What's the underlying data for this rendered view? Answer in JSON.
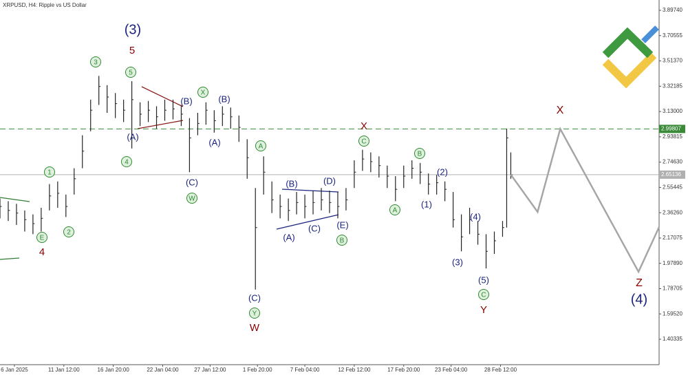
{
  "chart_data": {
    "type": "ohlc",
    "title": "XRPUSD, H4:  Ripple vs US Dollar",
    "color": "#222222",
    "x": [
      0,
      4,
      8,
      12,
      16,
      20,
      24,
      28,
      32,
      36,
      40,
      44,
      48,
      52,
      56,
      60,
      64,
      68,
      72,
      76,
      80,
      84,
      88,
      92,
      96,
      100,
      104,
      108,
      112,
      116,
      120,
      124,
      128,
      132,
      136,
      140,
      144,
      148,
      152,
      156,
      160,
      164,
      168,
      172,
      176,
      180,
      184,
      188,
      192,
      196,
      200,
      204,
      208,
      212,
      216,
      220,
      224,
      228,
      232,
      236,
      240,
      244,
      246,
      248
    ],
    "high": [
      2.47,
      2.45,
      2.43,
      2.38,
      2.35,
      2.4,
      2.58,
      2.6,
      2.5,
      2.7,
      2.95,
      3.22,
      3.4,
      3.33,
      3.27,
      3.22,
      3.36,
      3.2,
      3.21,
      3.17,
      3.22,
      3.22,
      3.18,
      3.08,
      3.12,
      3.2,
      3.14,
      3.17,
      3.16,
      3.1,
      2.92,
      2.55,
      2.79,
      2.6,
      2.5,
      2.47,
      2.52,
      2.5,
      2.53,
      2.55,
      2.53,
      2.52,
      2.55,
      2.76,
      2.84,
      2.82,
      2.79,
      2.72,
      2.64,
      2.72,
      2.76,
      2.74,
      2.66,
      2.65,
      2.6,
      2.52,
      2.35,
      2.4,
      2.3,
      2.2,
      2.22,
      2.3,
      3.0,
      2.82
    ],
    "low": [
      2.32,
      2.3,
      2.27,
      2.22,
      2.2,
      2.22,
      2.38,
      2.4,
      2.33,
      2.5,
      2.7,
      2.98,
      3.18,
      3.12,
      3.08,
      3.05,
      2.85,
      3.02,
      3.05,
      3.0,
      3.06,
      3.07,
      3.02,
      2.67,
      2.95,
      3.03,
      2.97,
      3.02,
      3.0,
      2.9,
      2.62,
      1.78,
      2.5,
      2.36,
      2.32,
      2.3,
      2.35,
      2.32,
      2.35,
      2.38,
      2.36,
      2.32,
      2.38,
      2.55,
      2.68,
      2.67,
      2.63,
      2.55,
      2.45,
      2.55,
      2.62,
      2.58,
      2.5,
      2.5,
      2.45,
      2.25,
      2.07,
      2.2,
      2.12,
      1.94,
      2.05,
      2.18,
      2.25,
      2.62
    ],
    "close": [
      2.41,
      2.38,
      2.36,
      2.31,
      2.28,
      2.32,
      2.49,
      2.51,
      2.41,
      2.62,
      2.83,
      3.14,
      3.32,
      3.24,
      3.19,
      3.14,
      3.22,
      3.11,
      3.14,
      3.09,
      3.14,
      3.15,
      3.11,
      2.93,
      3.04,
      3.14,
      3.06,
      3.11,
      3.09,
      3.01,
      2.78,
      2.25,
      2.67,
      2.46,
      2.41,
      2.38,
      2.44,
      2.41,
      2.44,
      2.46,
      2.44,
      2.41,
      2.46,
      2.67,
      2.77,
      2.75,
      2.72,
      2.64,
      2.54,
      2.64,
      2.7,
      2.67,
      2.58,
      2.59,
      2.54,
      2.31,
      2.18,
      2.31,
      2.2,
      2.07,
      2.15,
      2.25,
      2.93,
      2.65
    ],
    "xlim": [
      0,
      320
    ],
    "ylim": [
      1.2103,
      3.9757
    ],
    "xticks": [
      {
        "value": 7,
        "label": "6 Jan 2025"
      },
      {
        "value": 31,
        "label": "11 Jan 12:00"
      },
      {
        "value": 55,
        "label": "16 Jan 20:00"
      },
      {
        "value": 79,
        "label": "22 Jan 04:00"
      },
      {
        "value": 102,
        "label": "27 Jan 12:00"
      },
      {
        "value": 125,
        "label": "1 Feb 20:00"
      },
      {
        "value": 148,
        "label": "7 Feb 04:00"
      },
      {
        "value": 172,
        "label": "12 Feb 12:00"
      },
      {
        "value": 196,
        "label": "17 Feb 20:00"
      },
      {
        "value": 219,
        "label": "23 Feb 04:00"
      },
      {
        "value": 243,
        "label": "28 Feb 12:00"
      }
    ],
    "yticks": [
      {
        "value": 3.8974,
        "label": "3.89740"
      },
      {
        "value": 3.70555,
        "label": "3.70555"
      },
      {
        "value": 3.5137,
        "label": "3.51370"
      },
      {
        "value": 3.32185,
        "label": "3.32185"
      },
      {
        "value": 3.13,
        "label": "3.13000"
      },
      {
        "value": 2.93815,
        "label": "2.93815"
      },
      {
        "value": 2.7463,
        "label": "2.74630"
      },
      {
        "value": 2.55445,
        "label": "2.55445"
      },
      {
        "value": 2.3626,
        "label": "2.36260"
      },
      {
        "value": 2.17075,
        "label": "2.17075"
      },
      {
        "value": 1.9789,
        "label": "1.97890"
      },
      {
        "value": 1.78705,
        "label": "1.78705"
      },
      {
        "value": 1.5952,
        "label": "1.59520"
      },
      {
        "value": 1.40335,
        "label": "1.40335"
      }
    ],
    "hlines": [
      {
        "value": 2.99807,
        "color": "#3a8a3a"
      },
      {
        "value": 2.65136,
        "color": "#b0b0b0"
      }
    ],
    "forecast": {
      "x": [
        248,
        261,
        272,
        310,
        320
      ],
      "y": [
        2.65136,
        2.3687,
        2.99807,
        1.9147,
        2.2539
      ],
      "color": "#a6a6a6"
    },
    "annotations": [
      {
        "text": "(3)",
        "color": "#1a237e"
      },
      {
        "text": "5",
        "color": "#8b0000"
      },
      {
        "text": "3",
        "color": "#2e8b2e",
        "circled": true
      },
      {
        "text": "5",
        "color": "#2e8b2e",
        "circled": true
      },
      {
        "text": "X",
        "color": "#2e8b2e",
        "circled": true
      },
      {
        "text": "(B)",
        "color": "#1a237e"
      },
      {
        "text": "(B)",
        "color": "#1a237e"
      },
      {
        "text": "(A)",
        "color": "#1a237e"
      },
      {
        "text": "4",
        "color": "#2e8b2e",
        "circled": true
      },
      {
        "text": "(A)",
        "color": "#1a237e"
      },
      {
        "text": "(C)",
        "color": "#1a237e"
      },
      {
        "text": "W",
        "color": "#2e8b2e",
        "circled": true
      },
      {
        "text": "1",
        "color": "#2e8b2e",
        "circled": true
      },
      {
        "text": "2",
        "color": "#2e8b2e",
        "circled": true
      },
      {
        "text": "E",
        "color": "#2e8b2e",
        "circled": true
      },
      {
        "text": "4",
        "color": "#8b0000"
      },
      {
        "text": "A",
        "color": "#2e8b2e",
        "circled": true
      },
      {
        "text": "(B)",
        "color": "#1a237e"
      },
      {
        "text": "(D)",
        "color": "#1a237e"
      },
      {
        "text": "(A)",
        "color": "#1a237e"
      },
      {
        "text": "(C)",
        "color": "#1a237e"
      },
      {
        "text": "(E)",
        "color": "#1a237e"
      },
      {
        "text": "B",
        "color": "#2e8b2e",
        "circled": true
      },
      {
        "text": "(C)",
        "color": "#1a237e"
      },
      {
        "text": "Y",
        "color": "#2e8b2e",
        "circled": true
      },
      {
        "text": "W",
        "color": "#8b0000"
      },
      {
        "text": "X",
        "color": "#8b0000"
      },
      {
        "text": "C",
        "color": "#2e8b2e",
        "circled": true
      },
      {
        "text": "B",
        "color": "#2e8b2e",
        "circled": true
      },
      {
        "text": "(2)",
        "color": "#1a237e"
      },
      {
        "text": "A",
        "color": "#2e8b2e",
        "circled": true
      },
      {
        "text": "(1)",
        "color": "#1a237e"
      },
      {
        "text": "(4)",
        "color": "#1a237e"
      },
      {
        "text": "(3)",
        "color": "#1a237e"
      },
      {
        "text": "(5)",
        "color": "#1a237e"
      },
      {
        "text": "C",
        "color": "#2e8b2e",
        "circled": true
      },
      {
        "text": "Y",
        "color": "#8b0000"
      },
      {
        "text": "X",
        "color": "#8b0000"
      },
      {
        "text": "Z",
        "color": "#8b0000"
      },
      {
        "text": "(4)",
        "color": "#1a237e"
      }
    ]
  }
}
